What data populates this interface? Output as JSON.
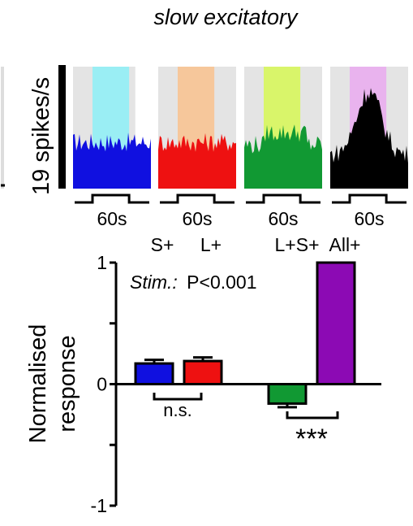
{
  "figure": {
    "title": "slow excitatory",
    "scale_bar_label": "19 spikes/s"
  },
  "colors": {
    "blue": "#1010e0",
    "red": "#ee1111",
    "green": "#119933",
    "black": "#000000",
    "purple": "#8c0ab4",
    "stim_cyan": "#9aeef4",
    "stim_orange": "#f6c79b",
    "stim_lime": "#d9f56a",
    "stim_violet": "#e9b3ee",
    "shade_gray": "#e4e4e4"
  },
  "traces": [
    {
      "label": "S+",
      "duration_label": "60s"
    },
    {
      "label": "L+",
      "duration_label": "60s"
    },
    {
      "label": "L+S+",
      "duration_label": "60s"
    },
    {
      "label": "All+",
      "duration_label": "60s"
    }
  ],
  "chart_data": {
    "type": "bar",
    "categories": [
      "S+",
      "L+",
      "L+S+",
      "All+"
    ],
    "values": [
      0.17,
      0.19,
      -0.16,
      1.0
    ],
    "errors": [
      0.03,
      0.03,
      0.03,
      0
    ],
    "title": "",
    "xlabel": "",
    "ylabel": "Normalised response",
    "ylim": [
      -1,
      1
    ],
    "yticks": [
      -1,
      -0.5,
      0,
      0.5,
      1
    ],
    "ytick_labels": [
      "-1",
      "",
      "0",
      "",
      "1"
    ],
    "grid": false,
    "legend": "none",
    "annotations": {
      "stat": "Stim.: P<0.001",
      "stat_prefix": "Stim.:",
      "stat_value": "P<0.001",
      "ns_label": "n.s.",
      "sig_label": "***"
    }
  }
}
